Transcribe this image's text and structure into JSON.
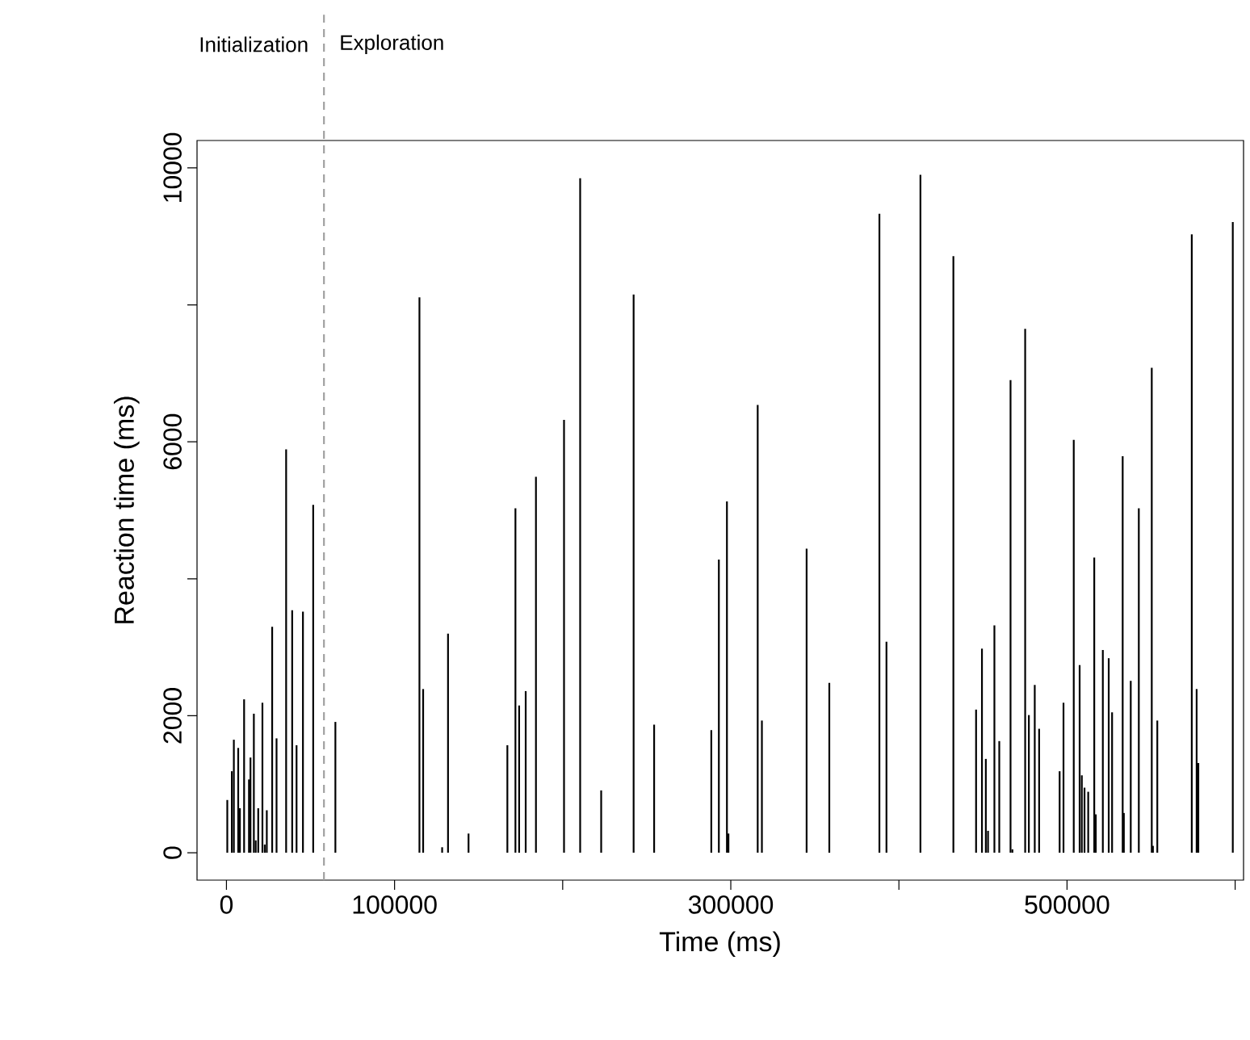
{
  "chart_data": {
    "type": "bar",
    "xlabel": "Time (ms)",
    "ylabel": "Reaction time (ms)",
    "color": "#000000",
    "x": [
      500,
      3200,
      4400,
      7000,
      8000,
      10500,
      13400,
      14300,
      16300,
      17400,
      18900,
      21400,
      22800,
      24000,
      27200,
      29800,
      35500,
      39100,
      41700,
      45500,
      51600,
      64800,
      114800,
      117000,
      128300,
      131800,
      144000,
      167100,
      171900,
      174100,
      178000,
      184100,
      200800,
      210400,
      222900,
      242200,
      254400,
      288400,
      292900,
      297700,
      298600,
      316000,
      318500,
      345100,
      358600,
      388400,
      392600,
      412800,
      432400,
      445900,
      449400,
      451700,
      453000,
      456800,
      459700,
      466400,
      467500,
      475100,
      477300,
      480800,
      483400,
      495600,
      497900,
      504000,
      507500,
      508800,
      510400,
      512600,
      516200,
      517100,
      521300,
      524800,
      526800,
      533100,
      533800,
      537900,
      542700,
      550400,
      551100,
      553700,
      574200,
      577100,
      578100,
      598600
    ],
    "values": [
      770,
      1190,
      1650,
      1530,
      650,
      2240,
      1070,
      1390,
      2030,
      180,
      650,
      2190,
      120,
      620,
      3300,
      1670,
      5890,
      3540,
      1570,
      3520,
      5080,
      1910,
      8110,
      2390,
      80,
      3200,
      280,
      1570,
      5030,
      2150,
      2360,
      5490,
      6320,
      9850,
      910,
      8150,
      1870,
      1790,
      4280,
      5130,
      280,
      6540,
      1930,
      4440,
      2480,
      9330,
      3080,
      9900,
      8710,
      2090,
      2980,
      1370,
      320,
      3320,
      1630,
      6900,
      50,
      7650,
      2010,
      2450,
      1810,
      1190,
      2190,
      6030,
      2740,
      1130,
      950,
      890,
      4310,
      560,
      2960,
      2840,
      2050,
      5790,
      580,
      2510,
      5030,
      7080,
      100,
      1930,
      9030,
      2390,
      1310,
      9210
    ],
    "xlim": [
      -17500,
      605000
    ],
    "ylim": [
      -400,
      10400
    ],
    "xticks": [
      0,
      100000,
      {
        "value": 200000,
        "label": null
      },
      300000,
      {
        "value": 400000,
        "label": null
      },
      500000,
      {
        "value": 600000,
        "label": null
      }
    ],
    "yticks": [
      0,
      2000,
      {
        "value": 4000,
        "label": null
      },
      6000,
      {
        "value": 8000,
        "label": null
      },
      10000
    ],
    "ref_lines": [
      {
        "axis": "x",
        "value": 58000,
        "color": "#a0a0a0",
        "line_style": "dashed"
      }
    ],
    "annotations": [
      "Initialization",
      "Exploration"
    ]
  }
}
